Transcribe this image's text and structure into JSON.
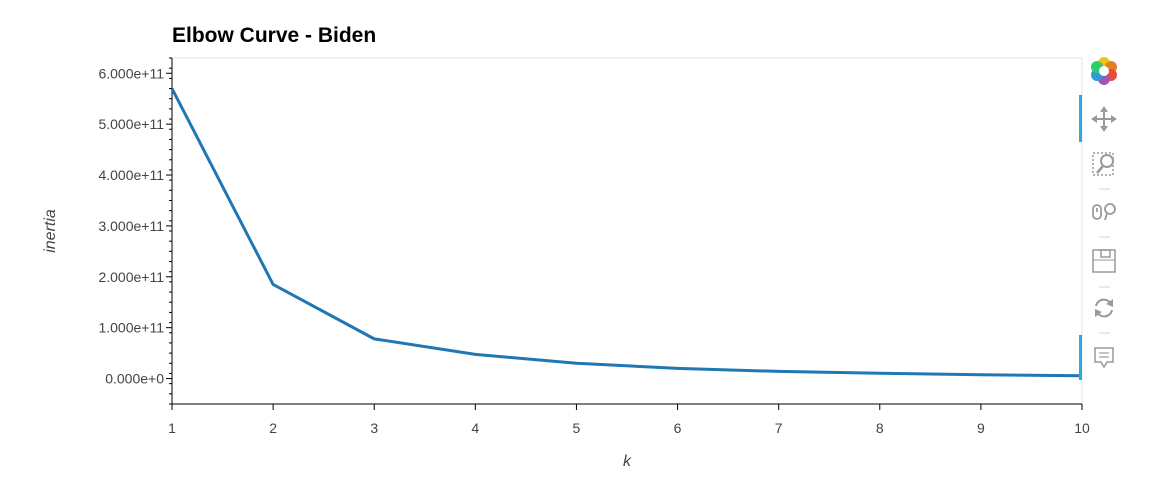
{
  "chart_data": {
    "type": "line",
    "title": "Elbow Curve - Biden",
    "xlabel": "k",
    "ylabel": "inertia",
    "x": [
      1,
      2,
      3,
      4,
      5,
      6,
      7,
      8,
      9,
      10
    ],
    "series": [
      {
        "values": [
          570000000000,
          185000000000,
          78000000000,
          47500000000,
          30000000000,
          20000000000,
          14000000000,
          10500000000,
          7500000000,
          5500000000
        ],
        "color": "#1f77b4"
      }
    ],
    "xlim": [
      1,
      10
    ],
    "ylim": [
      -50000000000,
      630000000000
    ],
    "x_ticks": [
      1,
      2,
      3,
      4,
      5,
      6,
      7,
      8,
      9,
      10
    ],
    "x_tick_labels": [
      "1",
      "2",
      "3",
      "4",
      "5",
      "6",
      "7",
      "8",
      "9",
      "10"
    ],
    "y_ticks": [
      0,
      100000000000,
      200000000000,
      300000000000,
      400000000000,
      500000000000,
      600000000000
    ],
    "y_tick_labels": [
      "0.000e+0",
      "1.000e+11",
      "2.000e+11",
      "3.000e+11",
      "4.000e+11",
      "5.000e+11",
      "6.000e+11"
    ],
    "grid": false,
    "legend": "none"
  },
  "toolbar": {
    "tools": [
      {
        "name": "bokeh-logo-icon",
        "interactable": false
      },
      {
        "name": "pan-tool-icon",
        "interactable": true
      },
      {
        "name": "box-zoom-tool-icon",
        "interactable": true
      },
      {
        "name": "wheel-zoom-tool-icon",
        "interactable": true
      },
      {
        "name": "save-tool-icon",
        "interactable": true
      },
      {
        "name": "reset-tool-icon",
        "interactable": true
      },
      {
        "name": "hover-tool-icon",
        "interactable": true
      }
    ],
    "active_color": "#26aae1"
  }
}
